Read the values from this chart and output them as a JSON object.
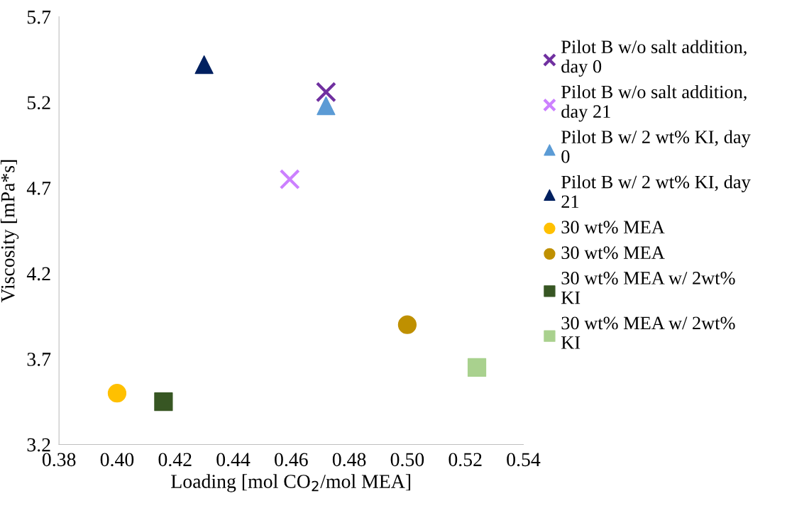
{
  "chart_data": {
    "type": "scatter",
    "xlabel": "Loading [mol CO$_{2}$/mol MEA]",
    "ylabel": "Viscosity [mPa*s]",
    "xlim": [
      0.38,
      0.54
    ],
    "xticks": [
      {
        "value": 0.38,
        "label": "0.38"
      },
      {
        "value": 0.4,
        "label": "0.40"
      },
      {
        "value": 0.42,
        "label": "0.42"
      },
      {
        "value": 0.44,
        "label": "0.44"
      },
      {
        "value": 0.46,
        "label": "0.46"
      },
      {
        "value": 0.48,
        "label": "0.48"
      },
      {
        "value": 0.5,
        "label": "0.50"
      },
      {
        "value": 0.52,
        "label": "0.52"
      },
      {
        "value": 0.54,
        "label": "0.54"
      }
    ],
    "ylim": [
      3.2,
      5.7
    ],
    "yticks": [
      3.2,
      3.7,
      4.2,
      4.7,
      5.2,
      5.7
    ],
    "grid": false,
    "legend": "right",
    "series": [
      {
        "name": "Pilot B w/o salt addition,\nday 0",
        "color": "#7030a0",
        "marker": "cross",
        "x": [
          0.472
        ],
        "values": [
          5.26
        ]
      },
      {
        "name": "Pilot B w/o salt addition,\nday 21",
        "color": "#cc80ff",
        "marker": "cross",
        "x": [
          0.4595
        ],
        "values": [
          4.75
        ]
      },
      {
        "name": "Pilot B w/ 2 wt% KI, day\n0",
        "color": "#5b9bd5",
        "marker": "triangle",
        "x": [
          0.472
        ],
        "values": [
          5.18
        ]
      },
      {
        "name": "Pilot B w/ 2 wt% KI, day\n21",
        "color": "#002060",
        "marker": "triangle",
        "x": [
          0.43
        ],
        "values": [
          5.42
        ]
      },
      {
        "name": "30 wt% MEA",
        "color": "#ffc000",
        "marker": "circle",
        "x": [
          0.4
        ],
        "values": [
          3.5
        ]
      },
      {
        "name": "30 wt% MEA",
        "color": "#bf9000",
        "marker": "circle",
        "x": [
          0.5
        ],
        "values": [
          3.9
        ]
      },
      {
        "name": "30 wt% MEA w/ 2wt%\nKI",
        "color": "#375623",
        "marker": "square",
        "x": [
          0.416
        ],
        "values": [
          3.45
        ]
      },
      {
        "name": "30 wt% MEA w/ 2wt%\nKI",
        "color": "#a9d18e",
        "marker": "square",
        "x": [
          0.524
        ],
        "values": [
          3.65
        ]
      }
    ]
  }
}
